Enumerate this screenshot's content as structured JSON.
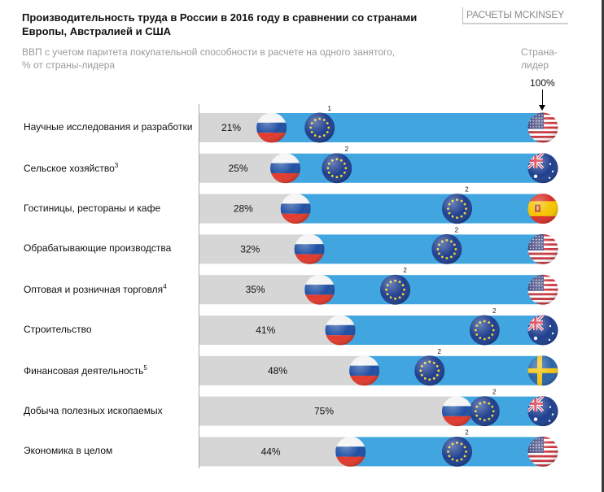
{
  "header": {
    "title": "Производительность труда в России в 2016 году в сравнении со странами Европы, Австралией и США",
    "source": "РАСЧЕТЫ MCKINSEY",
    "subtitle_line1": "ВВП с учетом паритета покупательной способности в расчете на одного занятого,",
    "subtitle_line2": "% от страны-лидера",
    "leader_line1": "Страна-",
    "leader_line2": "лидер",
    "leader_value": "100%"
  },
  "colors": {
    "gap_bar": "#41a6df",
    "russia_bar": "#d6d6d6",
    "eu_flag": "#1f3f8e"
  },
  "chart_data": {
    "type": "bar",
    "title": "Производительность труда в России в 2016 году в сравнении со странами Европы, Австралией и США",
    "ylabel": "ВВП с учетом паритета покупательной способности в расчете на одного занятого, % от страны-лидера",
    "xlim": [
      0,
      100
    ],
    "orientation": "horizontal",
    "categories": [
      {
        "label": "Научные исследования и разработки",
        "footnote": ""
      },
      {
        "label": "Сельское хозяйство",
        "footnote": "3"
      },
      {
        "label": "Гостиницы, рестораны и кафе",
        "footnote": ""
      },
      {
        "label": "Обрабатывающие производства",
        "footnote": ""
      },
      {
        "label": "Оптовая и розничная торговля",
        "footnote": "4"
      },
      {
        "label": "Строительство",
        "footnote": ""
      },
      {
        "label": "Финансовая деятельность",
        "footnote": "5"
      },
      {
        "label": "Добыча полезных ископаемых",
        "footnote": ""
      },
      {
        "label": "Экономика в целом",
        "footnote": ""
      }
    ],
    "series": [
      {
        "name": "Россия",
        "marker": "russia-flag",
        "values": [
          21,
          25,
          28,
          32,
          35,
          41,
          48,
          75,
          44
        ],
        "labels": [
          "21%",
          "25%",
          "28%",
          "32%",
          "35%",
          "41%",
          "48%",
          "75%",
          "44%"
        ]
      },
      {
        "name": "ЕС (оценка)",
        "marker": "eu-flag",
        "values": [
          35,
          40,
          75,
          72,
          57,
          83,
          67,
          83,
          75
        ],
        "footnotes": [
          "1",
          "2",
          "2",
          "2",
          "2",
          "2",
          "2",
          "2",
          "2"
        ]
      },
      {
        "name": "Страна-лидер",
        "values": [
          100,
          100,
          100,
          100,
          100,
          100,
          100,
          100,
          100
        ],
        "leaders": [
          "usa",
          "australia",
          "spain",
          "usa",
          "usa",
          "australia",
          "sweden",
          "australia",
          "usa"
        ]
      }
    ]
  }
}
